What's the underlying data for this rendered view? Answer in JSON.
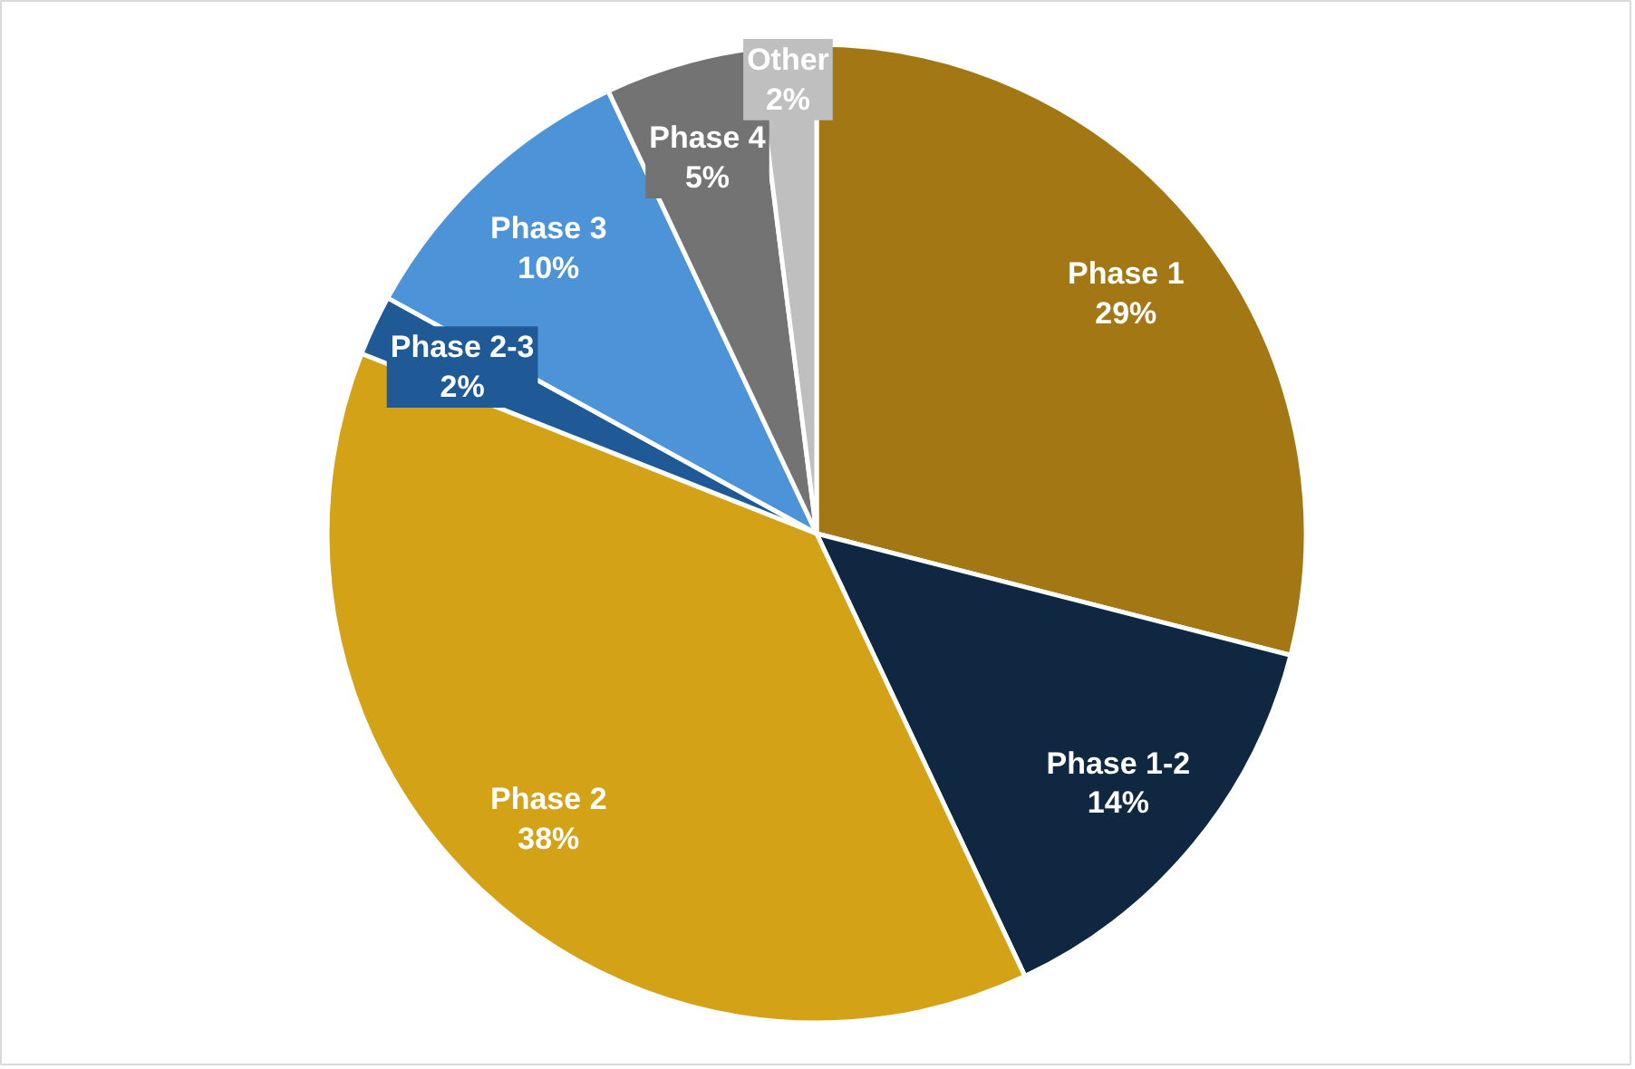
{
  "chart_data": {
    "type": "pie",
    "categories": [
      "Phase 1",
      "Phase 1-2",
      "Phase 2",
      "Phase 2-3",
      "Phase 3",
      "Phase 4",
      "Other"
    ],
    "values": [
      29,
      14,
      38,
      2,
      10,
      5,
      2
    ],
    "colors": [
      "#a37814",
      "#0f2741",
      "#d4a217",
      "#1f5a96",
      "#4d93d8",
      "#737373",
      "#bfbfbf"
    ],
    "value_labels": [
      "29%",
      "14%",
      "38%",
      "2%",
      "10%",
      "5%",
      "2%"
    ]
  }
}
